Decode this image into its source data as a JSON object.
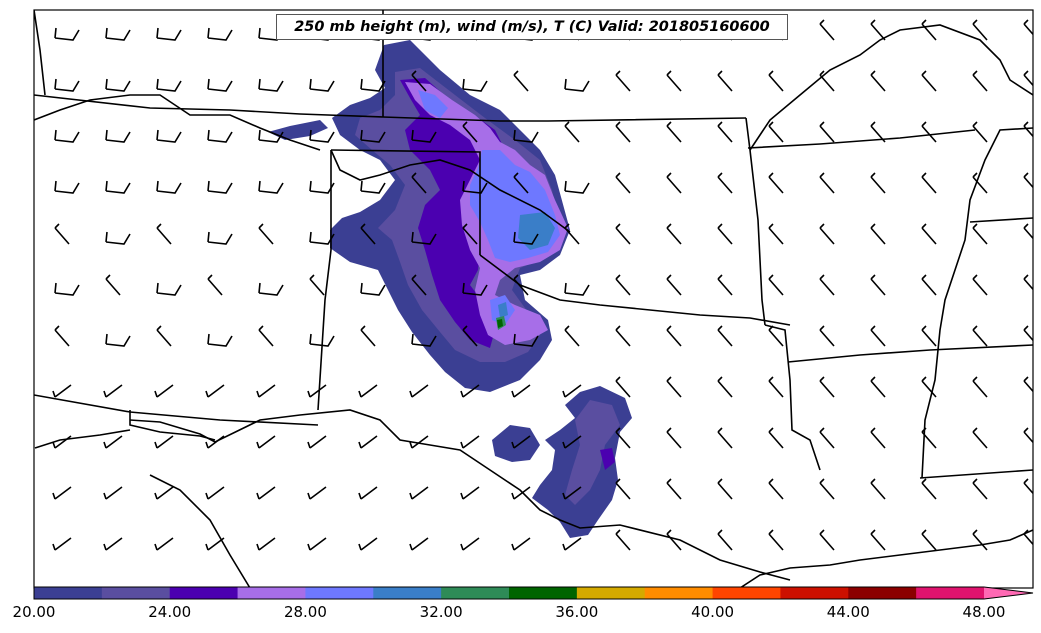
{
  "map": {
    "title": "250 mb height (m), wind (m/s), T (C) Valid: 201805160600"
  },
  "colorbar": {
    "levels": [
      20,
      22,
      24,
      26,
      28,
      30,
      32,
      34,
      36,
      38,
      40,
      42,
      44,
      46,
      48,
      50
    ],
    "colors": [
      "#3b3f93",
      "#5a4ea0",
      "#4b00b0",
      "#a76ee8",
      "#6e78ff",
      "#3a7ec8",
      "#2e8b57",
      "#006400",
      "#d4aa00",
      "#ff8c00",
      "#ff4500",
      "#cc1000",
      "#8b0000",
      "#e0136e",
      "#ff69b4"
    ],
    "extend": "max",
    "tick_labels": [
      "20.00",
      "24.00",
      "28.00",
      "32.00",
      "36.00",
      "40.00",
      "44.00",
      "48.00"
    ]
  }
}
